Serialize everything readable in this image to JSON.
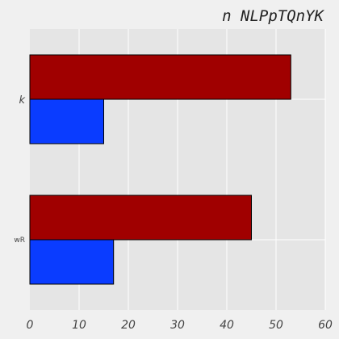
{
  "chart_data": {
    "type": "bar",
    "orientation": "horizontal",
    "title": "n NLPpTQnYK",
    "xlabel": "",
    "ylabel": "",
    "categories": [
      "wR",
      "k"
    ],
    "series": [
      {
        "values": [
          17,
          15
        ],
        "color": "#0a3cff"
      },
      {
        "values": [
          45,
          53
        ],
        "color": "#a00000"
      }
    ],
    "xlim": [
      0,
      60
    ],
    "xticks": [
      0,
      10,
      20,
      30,
      40,
      50,
      60
    ],
    "grid": true,
    "legend": "none"
  },
  "colors": {
    "plot_bg": "#e5e5e5",
    "page_bg": "#f0f0f0",
    "grid": "#ffffff"
  }
}
